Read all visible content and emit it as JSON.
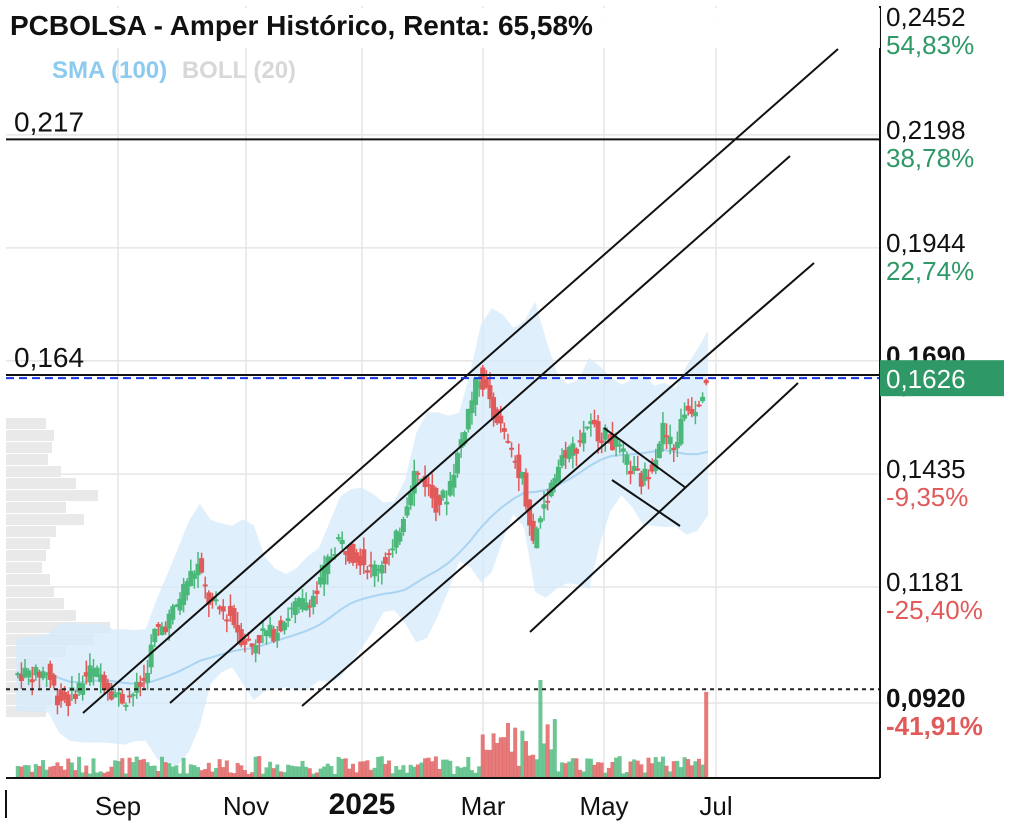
{
  "header": {
    "title": "PCBOLSA - Amper Histórico, Renta: 65,58%",
    "legend": {
      "sma": "SMA (100)",
      "boll": "BOLL (20)"
    }
  },
  "colors": {
    "up": "#4bb87a",
    "down": "#e05a5a",
    "sma": "#a9d4f2",
    "band": "#d4e9f9",
    "current": "#2e9966",
    "positive": "#2e9966",
    "negative": "#e05a5a",
    "dashed": "#1a36e6"
  },
  "chart_data": {
    "type": "candlestick",
    "title": "PCBOLSA - Amper Histórico, Renta: 65,58%",
    "x_ticks": [
      "Sep",
      "Nov",
      "2025",
      "Mar",
      "May",
      "Jul"
    ],
    "y_range": [
      0.085,
      0.252
    ],
    "y_ticks": [
      {
        "value": 0.2452,
        "label": "0,2452",
        "pct": "54,83%",
        "dir": "pos"
      },
      {
        "value": 0.2198,
        "label": "0,2198",
        "pct": "38,78%",
        "dir": "pos"
      },
      {
        "value": 0.1944,
        "label": "0,1944",
        "pct": "22,74%",
        "dir": "pos"
      },
      {
        "value": 0.169,
        "label": "0,1690",
        "pct": "6,69%",
        "dir": "pos",
        "bold": true
      },
      {
        "value": 0.1435,
        "label": "0,1435",
        "pct": "-9,35%",
        "dir": "neg"
      },
      {
        "value": 0.1181,
        "label": "0,1181",
        "pct": "-25,40%",
        "dir": "neg"
      },
      {
        "value": 0.092,
        "label": "0,0920",
        "pct": "-41,91%",
        "dir": "neg",
        "bold": true
      }
    ],
    "horizontal_lines": [
      {
        "value": 0.217,
        "label": "0,217"
      },
      {
        "value": 0.164,
        "label": "0,164"
      }
    ],
    "current_price": {
      "value": 0.1626,
      "label": "0,1626"
    },
    "reference_price": 0.0933,
    "price_path": [
      [
        0.098,
        0.0965
      ],
      [
        0.0955,
        0.097
      ],
      [
        0.0945,
        0.0965
      ],
      [
        0.0965,
        0.0975
      ],
      [
        0.092,
        0.0915
      ],
      [
        0.09,
        0.091
      ],
      [
        0.093,
        0.094
      ],
      [
        0.096,
        0.0975
      ],
      [
        0.098,
        0.0965
      ],
      [
        0.097,
        0.093
      ],
      [
        0.092,
        0.091
      ],
      [
        0.091,
        0.0925
      ],
      [
        0.093,
        0.095
      ],
      [
        0.103,
        0.106
      ],
      [
        0.105,
        0.108
      ],
      [
        0.108,
        0.112
      ],
      [
        0.114,
        0.118
      ],
      [
        0.119,
        0.121
      ],
      [
        0.118,
        0.113
      ],
      [
        0.112,
        0.111
      ],
      [
        0.113,
        0.11
      ],
      [
        0.107,
        0.105
      ],
      [
        0.104,
        0.103
      ],
      [
        0.105,
        0.106
      ],
      [
        0.104,
        0.106
      ],
      [
        0.107,
        0.109
      ],
      [
        0.111,
        0.112
      ],
      [
        0.114,
        0.113
      ],
      [
        0.112,
        0.115
      ],
      [
        0.118,
        0.122
      ],
      [
        0.124,
        0.127
      ],
      [
        0.126,
        0.124
      ],
      [
        0.122,
        0.123
      ],
      [
        0.121,
        0.12
      ],
      [
        0.119,
        0.122
      ],
      [
        0.125,
        0.124
      ],
      [
        0.128,
        0.133
      ],
      [
        0.137,
        0.142
      ],
      [
        0.143,
        0.14
      ],
      [
        0.139,
        0.135
      ],
      [
        0.134,
        0.137
      ],
      [
        0.139,
        0.146
      ],
      [
        0.15,
        0.156
      ],
      [
        0.16,
        0.164
      ],
      [
        0.163,
        0.158
      ],
      [
        0.155,
        0.152
      ],
      [
        0.149,
        0.146
      ],
      [
        0.145,
        0.141
      ],
      [
        0.135,
        0.126
      ],
      [
        0.128,
        0.135
      ],
      [
        0.138,
        0.142
      ],
      [
        0.144,
        0.147
      ],
      [
        0.146,
        0.148
      ],
      [
        0.149,
        0.153
      ],
      [
        0.154,
        0.151
      ],
      [
        0.149,
        0.15
      ],
      [
        0.151,
        0.147
      ],
      [
        0.146,
        0.143
      ],
      [
        0.142,
        0.14
      ],
      [
        0.141,
        0.144
      ],
      [
        0.148,
        0.152
      ],
      [
        0.149,
        0.147
      ],
      [
        0.149,
        0.156
      ],
      [
        0.16,
        0.157
      ],
      [
        0.154,
        0.163
      ]
    ]
  }
}
